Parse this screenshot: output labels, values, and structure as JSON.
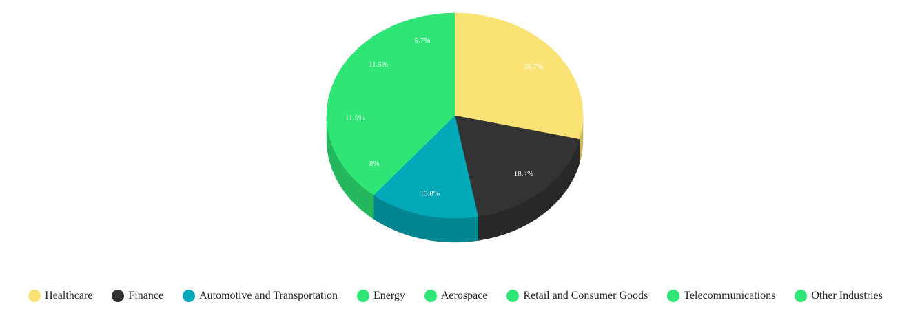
{
  "chart_data": {
    "type": "pie",
    "style": "3d",
    "categories": [
      "Healthcare",
      "Finance",
      "Automotive and Transportation",
      "Energy",
      "Aerospace",
      "Retail and Consumer Goods",
      "Telecommunications",
      "Other Industries"
    ],
    "values": [
      28.7,
      18.4,
      13.8,
      8,
      11.5,
      11.5,
      5.7,
      2.4
    ],
    "labels": [
      "28.7%",
      "18.4%",
      "13.8%",
      "8%",
      "11.5%",
      "11.5%",
      "5.7%",
      ""
    ],
    "colors": [
      "#fae275",
      "#333333",
      "#02a9b8",
      "#2ee576",
      "#2ee576",
      "#2ee576",
      "#2ee576",
      "#2ee576"
    ],
    "side_colors": [
      "#c8b45d",
      "#292929",
      "#028792",
      "#24b75e",
      "#24b75e",
      "#24b75e",
      "#24b75e",
      "#24b75e"
    ],
    "legend_position": "bottom",
    "start_angle_deg": 0,
    "direction": "clockwise"
  }
}
